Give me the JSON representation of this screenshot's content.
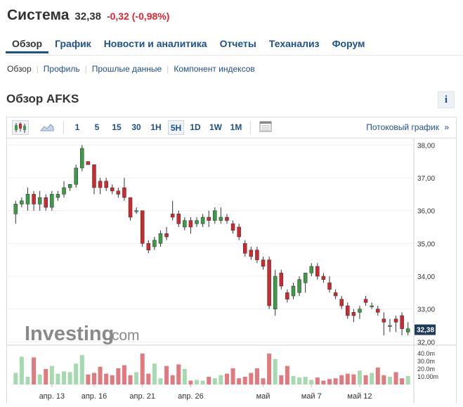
{
  "header": {
    "company": "Система",
    "price": "32,38",
    "change": "-0,32",
    "change_pct": "(-0,98%)"
  },
  "tabs": [
    "Обзор",
    "График",
    "Новости и аналитика",
    "Отчеты",
    "Теханализ",
    "Форум"
  ],
  "subnav": [
    "Обзор",
    "Профиль",
    "Прошлые данные",
    "Компонент индексов"
  ],
  "section_title": "Обзор AFKS",
  "info_label": "i",
  "toolbar": {
    "candle_icon": "candlestick-icon",
    "area_icon": "area-chart-icon",
    "periods": [
      "1",
      "5",
      "15",
      "30",
      "1H",
      "5H",
      "1D",
      "1W",
      "1M"
    ],
    "active_period": "5H",
    "layout_icon": "chart-layout-icon",
    "stream_label": "Потоковый график",
    "stream_arrow": "»"
  },
  "watermark": {
    "brand": "Investing",
    "suffix": ".com"
  },
  "colors": {
    "up": "#3c9a49",
    "down": "#cc2a30",
    "vol_up": "#a6d9b0",
    "vol_down": "#e07a7e",
    "link": "#1d4f91"
  },
  "chart_data": {
    "type": "candlestick",
    "price_axis": {
      "ticks": [
        "38,00",
        "37,00",
        "36,00",
        "35,00",
        "34,00",
        "33,00",
        "32,00"
      ],
      "min": 31.9,
      "max": 38.2
    },
    "volume_axis": {
      "ticks": [
        "40.0m",
        "30.0m",
        "20.0m",
        "10.00m"
      ]
    },
    "last_price_label": "32,38",
    "x_labels": [
      "апр. 13",
      "апр. 16",
      "апр. 21",
      "апр. 26",
      "май",
      "май 7",
      "май 12"
    ],
    "candles": [
      [
        35.9,
        36.3,
        35.6,
        36.2
      ],
      [
        36.2,
        36.4,
        36.1,
        36.3
      ],
      [
        36.2,
        36.7,
        36.0,
        36.5
      ],
      [
        36.5,
        36.6,
        36.0,
        36.2
      ],
      [
        36.2,
        36.6,
        36.0,
        36.4
      ],
      [
        36.4,
        36.5,
        36.0,
        36.1
      ],
      [
        36.1,
        36.6,
        36.0,
        36.5
      ],
      [
        36.4,
        36.6,
        36.3,
        36.5
      ],
      [
        36.5,
        36.9,
        36.4,
        36.7
      ],
      [
        36.7,
        36.8,
        36.6,
        36.8
      ],
      [
        36.8,
        37.4,
        36.7,
        37.3
      ],
      [
        37.3,
        38.0,
        37.2,
        37.9
      ],
      [
        37.5,
        37.5,
        37.4,
        37.4
      ],
      [
        37.4,
        37.4,
        36.5,
        36.7
      ],
      [
        36.9,
        37.0,
        36.5,
        36.7
      ],
      [
        36.9,
        37.0,
        36.6,
        36.7
      ],
      [
        36.7,
        36.8,
        36.5,
        36.6
      ],
      [
        36.6,
        36.7,
        36.4,
        36.5
      ],
      [
        36.7,
        37.0,
        36.3,
        36.4
      ],
      [
        36.4,
        36.4,
        35.7,
        35.8
      ],
      [
        36.0,
        36.1,
        35.9,
        36.0
      ],
      [
        36.0,
        36.0,
        34.9,
        35.0
      ],
      [
        35.0,
        35.1,
        34.7,
        34.8
      ],
      [
        34.9,
        35.2,
        34.8,
        35.1
      ],
      [
        35.0,
        35.4,
        34.9,
        35.3
      ],
      [
        35.3,
        35.5,
        35.1,
        35.2
      ],
      [
        35.9,
        36.3,
        35.7,
        35.8
      ],
      [
        35.9,
        36.0,
        35.5,
        35.6
      ],
      [
        35.5,
        35.8,
        35.4,
        35.7
      ],
      [
        35.7,
        35.8,
        35.3,
        35.5
      ],
      [
        35.6,
        35.8,
        35.5,
        35.7
      ],
      [
        35.6,
        35.9,
        35.5,
        35.8
      ],
      [
        35.8,
        36.0,
        35.5,
        35.7
      ],
      [
        35.7,
        36.1,
        35.6,
        36.0
      ],
      [
        35.7,
        36.1,
        35.6,
        35.8
      ],
      [
        35.8,
        35.9,
        35.6,
        35.7
      ],
      [
        35.6,
        35.7,
        35.3,
        35.4
      ],
      [
        35.5,
        35.6,
        35.1,
        35.2
      ],
      [
        35.0,
        35.1,
        34.6,
        34.7
      ],
      [
        34.8,
        34.9,
        34.5,
        34.6
      ],
      [
        34.8,
        34.9,
        34.4,
        34.5
      ],
      [
        34.5,
        34.6,
        34.2,
        34.3
      ],
      [
        34.5,
        34.6,
        33.0,
        33.1
      ],
      [
        33.0,
        34.2,
        32.8,
        34.0
      ],
      [
        34.1,
        34.2,
        33.6,
        33.7
      ],
      [
        33.5,
        33.6,
        33.2,
        33.3
      ],
      [
        33.4,
        33.8,
        33.3,
        33.7
      ],
      [
        33.5,
        34.0,
        33.4,
        33.9
      ],
      [
        33.8,
        34.1,
        33.5,
        34.1
      ],
      [
        34.1,
        34.4,
        34.0,
        34.3
      ],
      [
        34.3,
        34.4,
        33.9,
        34.0
      ],
      [
        34.0,
        34.1,
        33.8,
        33.9
      ],
      [
        33.8,
        34.0,
        33.5,
        33.6
      ],
      [
        33.5,
        33.6,
        33.3,
        33.4
      ],
      [
        33.3,
        33.4,
        33.0,
        33.1
      ],
      [
        33.1,
        33.2,
        32.7,
        32.8
      ],
      [
        32.9,
        33.0,
        32.6,
        32.8
      ],
      [
        32.9,
        33.1,
        32.7,
        33.0
      ],
      [
        33.3,
        33.4,
        33.1,
        33.2
      ],
      [
        33.1,
        33.2,
        33.0,
        33.1
      ],
      [
        33.0,
        33.1,
        32.8,
        32.9
      ],
      [
        32.7,
        32.9,
        32.2,
        32.6
      ],
      [
        32.5,
        32.7,
        32.3,
        32.5
      ],
      [
        32.7,
        32.8,
        32.3,
        32.6
      ],
      [
        32.8,
        32.9,
        32.2,
        32.4
      ],
      [
        32.3,
        32.6,
        32.2,
        32.4
      ]
    ],
    "volumes": [
      15,
      36,
      10,
      35,
      13,
      20,
      24,
      14,
      17,
      16,
      27,
      38,
      13,
      15,
      23,
      14,
      12,
      21,
      25,
      12,
      16,
      40,
      14,
      27,
      8,
      24,
      12,
      26,
      20,
      5,
      6,
      5,
      10,
      8,
      12,
      14,
      21,
      8,
      10,
      15,
      21,
      8,
      40,
      33,
      12,
      24,
      11,
      9,
      10,
      6,
      9,
      5,
      7,
      8,
      12,
      14,
      13,
      18,
      12,
      15,
      22,
      12,
      10,
      16,
      8,
      11
    ]
  }
}
